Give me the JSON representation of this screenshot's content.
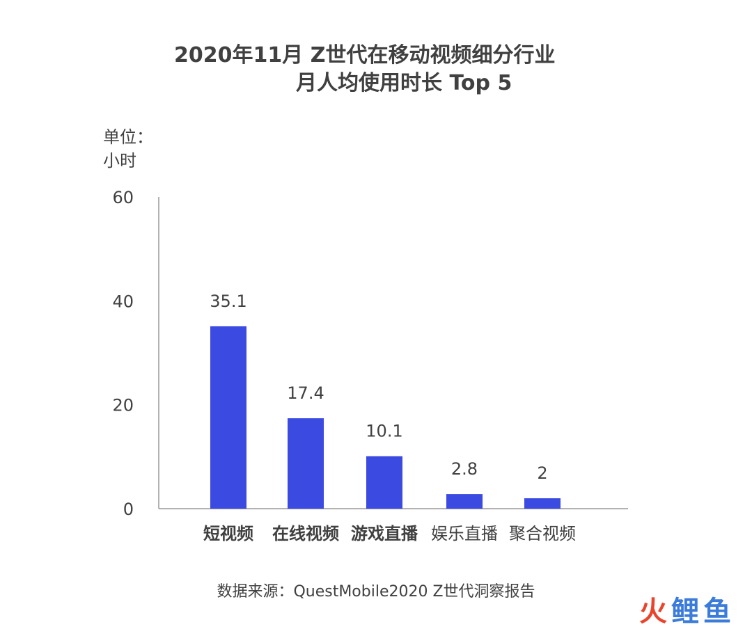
{
  "chart_data": {
    "type": "bar",
    "title": "2020年11月 Z世代在移动视频细分行业",
    "subtitle": "月人均使用时长 Top 5",
    "ylabel": "单位：小时",
    "xlabel": "",
    "categories": [
      "短视频",
      "在线视频",
      "游戏直播",
      "娱乐直播",
      "聚合视频"
    ],
    "values": [
      35.1,
      17.4,
      10.1,
      2.8,
      2
    ],
    "value_labels": [
      "35.1",
      "17.4",
      "10.1",
      "2.8",
      "2"
    ],
    "bold_categories": [
      true,
      true,
      true,
      false,
      false
    ],
    "ylim": [
      0,
      60
    ],
    "yticks": [
      0,
      20,
      40,
      60
    ],
    "grid": false,
    "bar_color": "#3b4ae0"
  },
  "unit": {
    "line1": "单位：",
    "line2": "小时"
  },
  "source": "数据来源：QuestMobile2020 Z世代洞察报告",
  "watermark": {
    "char1": "火",
    "char2": "鲤",
    "char3": "鱼"
  }
}
